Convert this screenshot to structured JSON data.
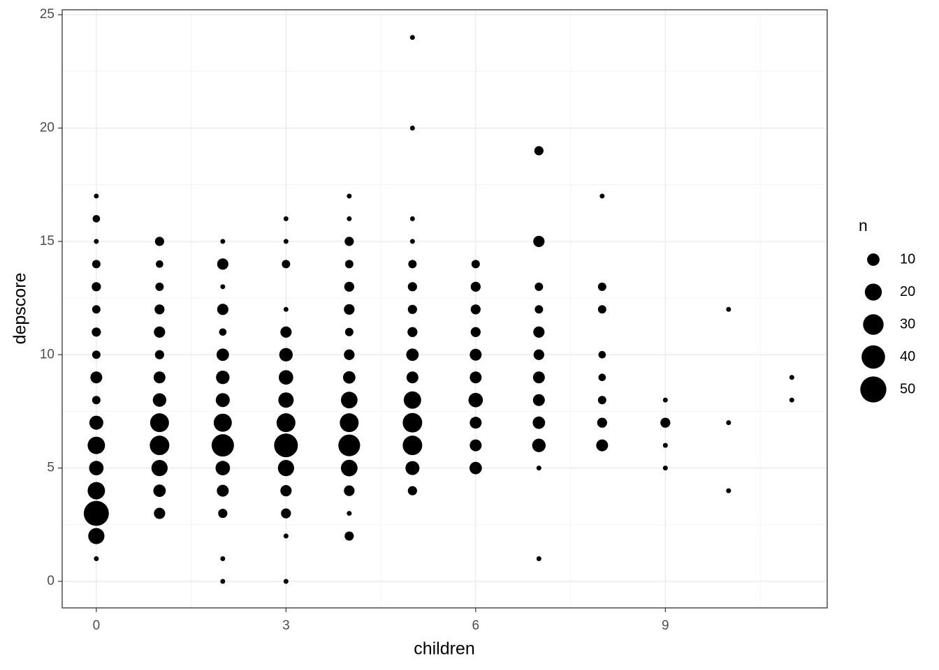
{
  "chart_data": {
    "type": "scatter",
    "x_label": "children",
    "y_label": "depscore",
    "xlim": [
      -0.54,
      11.56
    ],
    "ylim": [
      -1.17,
      25.22
    ],
    "xticks": [
      0,
      3,
      6,
      9
    ],
    "yticks": [
      0,
      5,
      10,
      15,
      20,
      25
    ],
    "xminor": [
      1.5,
      4.5,
      7.5,
      10.5
    ],
    "yminor": [
      2.5,
      7.5,
      12.5,
      17.5,
      22.5
    ],
    "grid": true,
    "color": "#000000",
    "size_legend": {
      "title": "n",
      "values": [
        10,
        20,
        30,
        40,
        50
      ]
    },
    "x": [
      0,
      0,
      0,
      0,
      0,
      0,
      0,
      0,
      0,
      0,
      0,
      0,
      0,
      0,
      0,
      0,
      0,
      1,
      1,
      1,
      1,
      1,
      1,
      1,
      1,
      1,
      1,
      1,
      1,
      1,
      2,
      2,
      2,
      2,
      2,
      2,
      2,
      2,
      2,
      2,
      2,
      2,
      2,
      2,
      2,
      3,
      3,
      3,
      3,
      3,
      3,
      3,
      3,
      3,
      3,
      3,
      3,
      3,
      3,
      3,
      4,
      4,
      4,
      4,
      4,
      4,
      4,
      4,
      4,
      4,
      4,
      4,
      4,
      4,
      4,
      4,
      5,
      5,
      5,
      5,
      5,
      5,
      5,
      5,
      5,
      5,
      5,
      5,
      5,
      5,
      5,
      6,
      6,
      6,
      6,
      6,
      6,
      6,
      6,
      6,
      6,
      7,
      7,
      7,
      7,
      7,
      7,
      7,
      7,
      7,
      7,
      7,
      7,
      8,
      8,
      8,
      8,
      8,
      8,
      8,
      8,
      9,
      9,
      9,
      9,
      10,
      10,
      10,
      11,
      11
    ],
    "y": [
      17,
      16,
      15,
      14,
      13,
      12,
      11,
      10,
      9,
      8,
      7,
      6,
      5,
      4,
      3,
      2,
      1,
      15,
      14,
      13,
      12,
      11,
      10,
      9,
      8,
      7,
      6,
      5,
      4,
      3,
      15,
      14,
      13,
      12,
      11,
      10,
      9,
      8,
      7,
      6,
      5,
      4,
      3,
      1,
      0,
      16,
      15,
      14,
      12,
      11,
      10,
      9,
      8,
      7,
      6,
      5,
      4,
      3,
      2,
      0,
      17,
      16,
      15,
      14,
      13,
      12,
      11,
      10,
      9,
      8,
      7,
      6,
      5,
      4,
      3,
      2,
      24,
      20,
      16,
      15,
      14,
      13,
      12,
      11,
      10,
      9,
      8,
      7,
      6,
      5,
      4,
      14,
      13,
      12,
      11,
      10,
      9,
      8,
      7,
      6,
      5,
      19,
      15,
      13,
      12,
      11,
      10,
      9,
      8,
      7,
      6,
      5,
      1,
      17,
      13,
      12,
      10,
      9,
      8,
      7,
      6,
      8,
      7,
      6,
      5,
      12,
      7,
      4,
      9,
      8
    ],
    "size": [
      1,
      3,
      1,
      4,
      5,
      4,
      5,
      4,
      9,
      4,
      13,
      21,
      14,
      21,
      46,
      18,
      1,
      5,
      3,
      4,
      6,
      8,
      5,
      9,
      12,
      25,
      27,
      18,
      10,
      8,
      1,
      8,
      1,
      8,
      3,
      10,
      12,
      13,
      23,
      36,
      14,
      9,
      5,
      1,
      1,
      1,
      1,
      4,
      1,
      8,
      12,
      14,
      16,
      25,
      41,
      18,
      8,
      6,
      1,
      1,
      1,
      1,
      5,
      4,
      6,
      7,
      4,
      7,
      10,
      19,
      25,
      34,
      19,
      7,
      1,
      5,
      1,
      1,
      1,
      1,
      4,
      5,
      5,
      6,
      10,
      9,
      21,
      27,
      27,
      13,
      5,
      4,
      6,
      6,
      6,
      9,
      9,
      14,
      9,
      9,
      10,
      5,
      8,
      4,
      4,
      8,
      7,
      9,
      9,
      10,
      12,
      1,
      1,
      1,
      4,
      4,
      3,
      3,
      4,
      6,
      9,
      1,
      6,
      1,
      1,
      1,
      1,
      1,
      1,
      1
    ]
  }
}
